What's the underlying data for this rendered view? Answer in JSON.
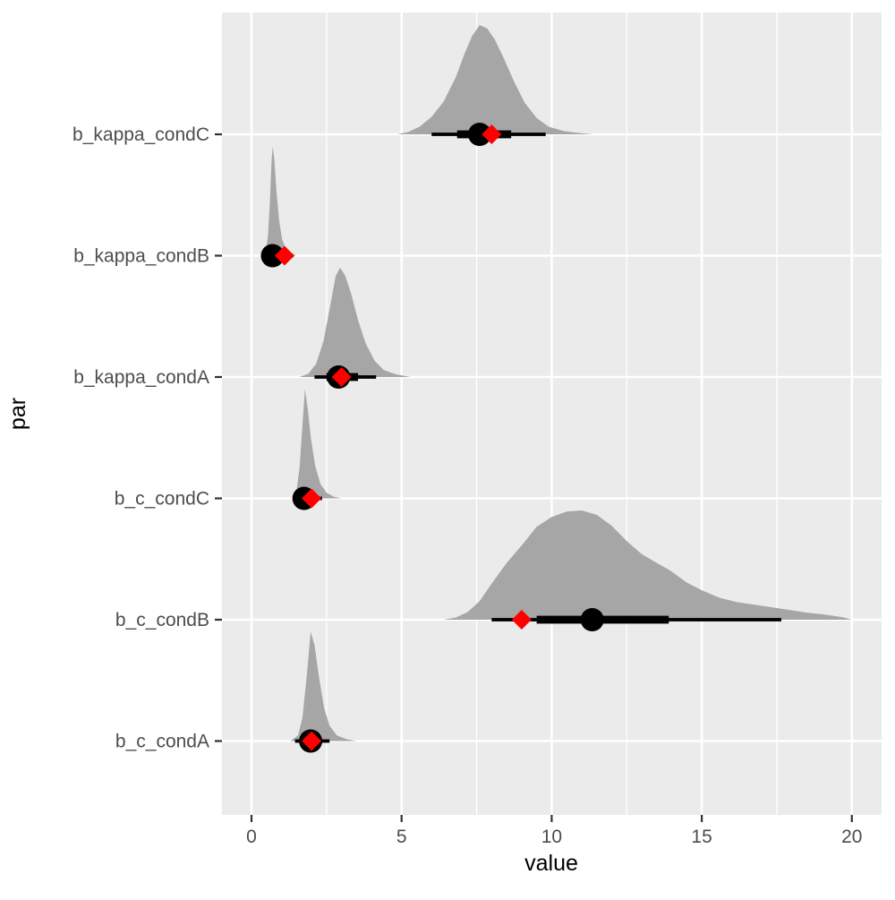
{
  "figure": {
    "xlabel": "value",
    "ylabel": "par"
  },
  "chart_data": {
    "type": "area",
    "subtype": "halfeye-density-with-point-interval",
    "title": "",
    "xlabel": "value",
    "ylabel": "par",
    "xlim": [
      -1,
      21
    ],
    "x_ticks": [
      0,
      5,
      10,
      15,
      20
    ],
    "x_minor_ticks": [
      2.5,
      7.5,
      12.5,
      17.5
    ],
    "grid": true,
    "legend": "none",
    "row_order": "top-to-bottom",
    "colors": {
      "panel_bg": "#EBEBEB",
      "grid": "#FFFFFF",
      "slab_fill": "#A6A6A6",
      "interval": "#000000",
      "point": "#000000",
      "true_marker": "#FF0000",
      "axis_text": "#4D4D4D",
      "axis_title": "#000000",
      "tick_mark": "#333333",
      "background": "#FFFFFF"
    },
    "rows": [
      {
        "label": "b_kappa_condC",
        "point": 7.6,
        "ci66": [
          6.85,
          8.65
        ],
        "ci95": [
          6.0,
          9.8
        ],
        "true_value": 8.0,
        "density": [
          [
            4.85,
            0
          ],
          [
            5.2,
            0.02
          ],
          [
            5.6,
            0.07
          ],
          [
            6.0,
            0.16
          ],
          [
            6.4,
            0.3
          ],
          [
            6.8,
            0.52
          ],
          [
            7.1,
            0.74
          ],
          [
            7.35,
            0.9
          ],
          [
            7.6,
            1.0
          ],
          [
            7.85,
            0.97
          ],
          [
            8.1,
            0.87
          ],
          [
            8.4,
            0.7
          ],
          [
            8.75,
            0.48
          ],
          [
            9.1,
            0.29
          ],
          [
            9.5,
            0.15
          ],
          [
            9.9,
            0.07
          ],
          [
            10.4,
            0.03
          ],
          [
            10.9,
            0.012
          ],
          [
            11.4,
            0
          ]
        ]
      },
      {
        "label": "b_kappa_condB",
        "point": 0.7,
        "ci66": [
          0.55,
          0.95
        ],
        "ci95": [
          0.35,
          1.4
        ],
        "true_value": 1.1,
        "density": [
          [
            0.38,
            0
          ],
          [
            0.48,
            0.05
          ],
          [
            0.55,
            0.18
          ],
          [
            0.61,
            0.48
          ],
          [
            0.67,
            0.88
          ],
          [
            0.71,
            1.0
          ],
          [
            0.76,
            0.88
          ],
          [
            0.83,
            0.6
          ],
          [
            0.92,
            0.32
          ],
          [
            1.02,
            0.15
          ],
          [
            1.15,
            0.06
          ],
          [
            1.3,
            0.02
          ],
          [
            1.5,
            0
          ]
        ]
      },
      {
        "label": "b_kappa_condA",
        "point": 2.9,
        "ci66": [
          2.5,
          3.55
        ],
        "ci95": [
          2.1,
          4.15
        ],
        "true_value": 3.0,
        "density": [
          [
            1.6,
            0
          ],
          [
            1.9,
            0.03
          ],
          [
            2.15,
            0.12
          ],
          [
            2.4,
            0.33
          ],
          [
            2.62,
            0.65
          ],
          [
            2.8,
            0.92
          ],
          [
            2.95,
            1.0
          ],
          [
            3.12,
            0.93
          ],
          [
            3.32,
            0.76
          ],
          [
            3.55,
            0.52
          ],
          [
            3.8,
            0.31
          ],
          [
            4.1,
            0.15
          ],
          [
            4.4,
            0.065
          ],
          [
            4.8,
            0.025
          ],
          [
            5.3,
            0
          ]
        ]
      },
      {
        "label": "b_c_condC",
        "point": 1.75,
        "ci66": [
          1.6,
          2.0
        ],
        "ci95": [
          1.45,
          2.35
        ],
        "true_value": 2.0,
        "density": [
          [
            1.35,
            0
          ],
          [
            1.5,
            0.07
          ],
          [
            1.6,
            0.28
          ],
          [
            1.7,
            0.68
          ],
          [
            1.78,
            1.0
          ],
          [
            1.87,
            0.83
          ],
          [
            1.98,
            0.55
          ],
          [
            2.12,
            0.3
          ],
          [
            2.3,
            0.13
          ],
          [
            2.5,
            0.05
          ],
          [
            2.75,
            0.015
          ],
          [
            3.0,
            0
          ]
        ]
      },
      {
        "label": "b_c_condB",
        "point": 11.35,
        "ci66": [
          9.5,
          13.9
        ],
        "ci95": [
          8.0,
          17.65
        ],
        "true_value": 9.0,
        "density": [
          [
            6.4,
            0
          ],
          [
            6.8,
            0.02
          ],
          [
            7.2,
            0.07
          ],
          [
            7.6,
            0.17
          ],
          [
            8.0,
            0.33
          ],
          [
            8.5,
            0.52
          ],
          [
            9.0,
            0.68
          ],
          [
            9.5,
            0.85
          ],
          [
            10.0,
            0.94
          ],
          [
            10.5,
            0.99
          ],
          [
            11.0,
            1.0
          ],
          [
            11.5,
            0.96
          ],
          [
            12.0,
            0.86
          ],
          [
            12.5,
            0.72
          ],
          [
            13.0,
            0.6
          ],
          [
            13.5,
            0.52
          ],
          [
            13.95,
            0.45
          ],
          [
            14.5,
            0.34
          ],
          [
            15.0,
            0.27
          ],
          [
            15.6,
            0.2
          ],
          [
            16.2,
            0.16
          ],
          [
            16.8,
            0.135
          ],
          [
            17.3,
            0.115
          ],
          [
            17.9,
            0.09
          ],
          [
            18.5,
            0.065
          ],
          [
            19.0,
            0.05
          ],
          [
            19.4,
            0.035
          ],
          [
            19.7,
            0.022
          ],
          [
            20.0,
            0
          ]
        ]
      },
      {
        "label": "b_c_condA",
        "point": 1.97,
        "ci66": [
          1.78,
          2.25
        ],
        "ci95": [
          1.45,
          2.6
        ],
        "true_value": 2.0,
        "density": [
          [
            1.3,
            0
          ],
          [
            1.55,
            0.05
          ],
          [
            1.7,
            0.22
          ],
          [
            1.85,
            0.62
          ],
          [
            1.97,
            1.0
          ],
          [
            2.1,
            0.88
          ],
          [
            2.25,
            0.58
          ],
          [
            2.42,
            0.3
          ],
          [
            2.6,
            0.14
          ],
          [
            2.85,
            0.05
          ],
          [
            3.2,
            0.015
          ],
          [
            3.5,
            0
          ]
        ]
      }
    ]
  }
}
